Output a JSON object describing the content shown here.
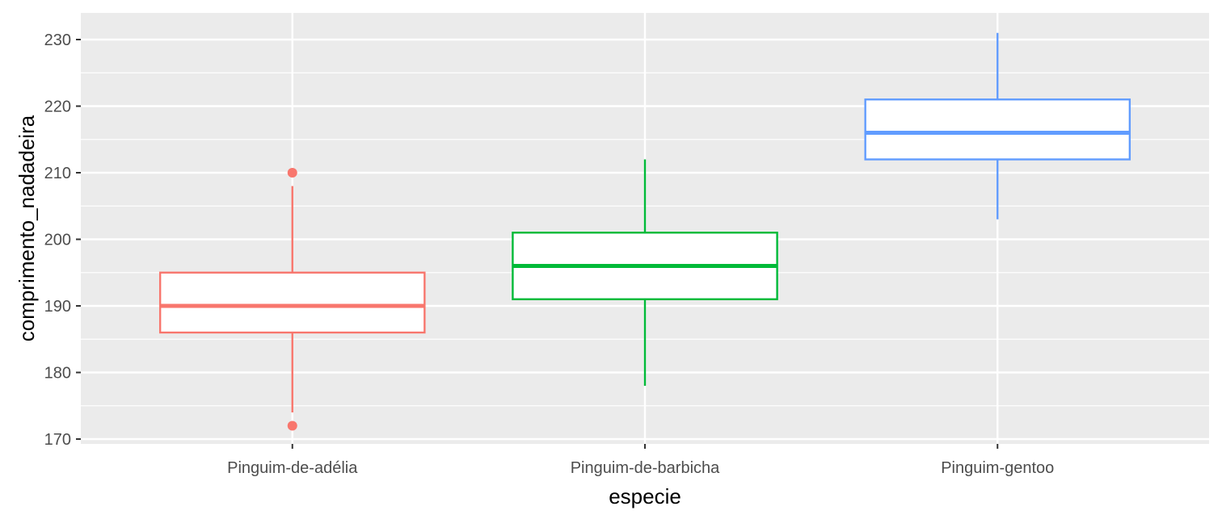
{
  "chart_data": {
    "type": "boxplot",
    "xlabel": "especie",
    "ylabel": "comprimento_nadadeira",
    "ylim": [
      169,
      234
    ],
    "yticks": [
      170,
      180,
      190,
      200,
      210,
      220,
      230
    ],
    "grid": true,
    "legend": "none",
    "categories": [
      "Pinguim-de-adélia",
      "Pinguim-de-barbicha",
      "Pinguim-gentoo"
    ],
    "boxes": [
      {
        "category": "Pinguim-de-adélia",
        "color": "#F8766D",
        "whisker_low": 174,
        "q1": 186,
        "median": 190,
        "q3": 195,
        "whisker_high": 208,
        "outliers": [
          172,
          210
        ]
      },
      {
        "category": "Pinguim-de-barbicha",
        "color": "#00BA38",
        "whisker_low": 178,
        "q1": 191,
        "median": 196,
        "q3": 201,
        "whisker_high": 212,
        "outliers": []
      },
      {
        "category": "Pinguim-gentoo",
        "color": "#619CFF",
        "whisker_low": 203,
        "q1": 212,
        "median": 216,
        "q3": 221,
        "whisker_high": 231,
        "outliers": []
      }
    ]
  }
}
